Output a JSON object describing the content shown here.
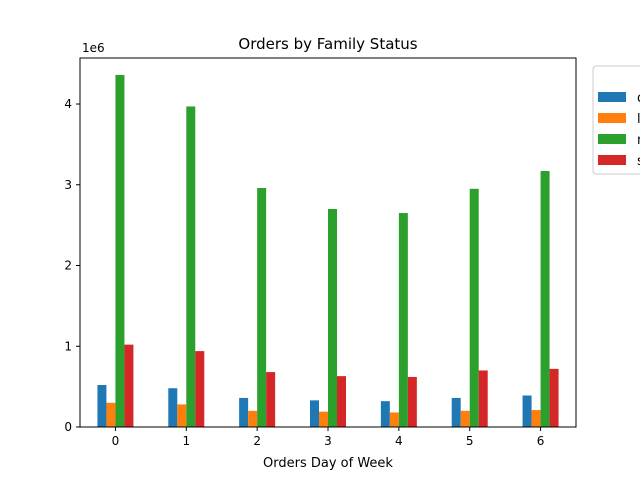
{
  "chart_data": {
    "type": "bar",
    "title": "Orders by Family Status",
    "xlabel": "Orders Day of Week",
    "ylabel": "",
    "y_multiplier_label": "1e6",
    "categories": [
      "0",
      "1",
      "2",
      "3",
      "4",
      "5",
      "6"
    ],
    "ylim": [
      0,
      4.57
    ],
    "yticks": [
      "0",
      "1",
      "2",
      "3",
      "4"
    ],
    "grid": false,
    "legend_position": "right (clipped)",
    "series": [
      {
        "name": "d",
        "color": "#1f77b4",
        "values": [
          0.52,
          0.48,
          0.36,
          0.33,
          0.32,
          0.36,
          0.39
        ]
      },
      {
        "name": "l",
        "color": "#ff7f0e",
        "values": [
          0.3,
          0.28,
          0.2,
          0.19,
          0.18,
          0.2,
          0.21
        ]
      },
      {
        "name": "m",
        "color": "#2ca02c",
        "values": [
          4.36,
          3.97,
          2.96,
          2.7,
          2.65,
          2.95,
          3.17
        ]
      },
      {
        "name": "s",
        "color": "#d62728",
        "values": [
          1.02,
          0.94,
          0.68,
          0.63,
          0.62,
          0.7,
          0.72
        ]
      }
    ]
  }
}
